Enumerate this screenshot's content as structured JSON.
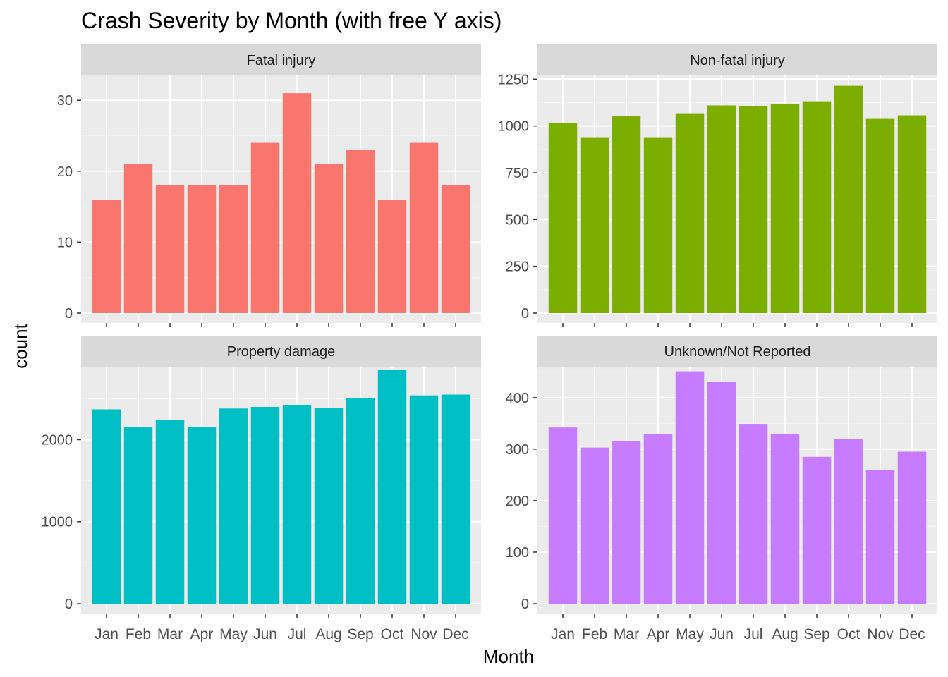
{
  "title": "Crash Severity by Month (with free Y axis)",
  "xlabel": "Month",
  "ylabel": "count",
  "chart_data": {
    "type": "bar",
    "title": "Crash Severity by Month (with free Y axis)",
    "xlabel": "Month",
    "ylabel": "count",
    "categories": [
      "Jan",
      "Feb",
      "Mar",
      "Apr",
      "May",
      "Jun",
      "Jul",
      "Aug",
      "Sep",
      "Oct",
      "Nov",
      "Dec"
    ],
    "grid": true,
    "legend": "none",
    "facets": [
      {
        "name": "Fatal injury",
        "color": "#F8766D",
        "values": [
          16,
          21,
          18,
          18,
          18,
          24,
          31,
          21,
          23,
          16,
          24,
          18
        ],
        "ylim": [
          0,
          33.5
        ],
        "yticks": [
          0,
          10,
          20,
          30
        ],
        "minor_yticks": [
          5,
          15,
          25
        ]
      },
      {
        "name": "Non-fatal injury",
        "color": "#7CAE00",
        "values": [
          1015,
          940,
          1053,
          940,
          1068,
          1110,
          1105,
          1118,
          1132,
          1215,
          1038,
          1057
        ],
        "ylim": [
          0,
          1270
        ],
        "yticks": [
          0,
          250,
          500,
          750,
          1000,
          1250
        ],
        "minor_yticks": [
          125,
          375,
          625,
          875,
          1125
        ]
      },
      {
        "name": "Property damage",
        "color": "#00BFC4",
        "values": [
          2370,
          2150,
          2240,
          2150,
          2380,
          2400,
          2420,
          2390,
          2510,
          2850,
          2540,
          2550
        ],
        "ylim": [
          0,
          2890
        ],
        "yticks": [
          0,
          1000,
          2000
        ],
        "minor_yticks": [
          500,
          1500,
          2500
        ]
      },
      {
        "name": "Unknown/Not Reported",
        "color": "#C77CFF",
        "values": [
          342,
          303,
          316,
          329,
          451,
          430,
          349,
          330,
          285,
          319,
          259,
          295
        ],
        "ylim": [
          0,
          460
        ],
        "yticks": [
          0,
          100,
          200,
          300,
          400
        ],
        "minor_yticks": [
          50,
          150,
          250,
          350,
          450
        ]
      }
    ]
  }
}
